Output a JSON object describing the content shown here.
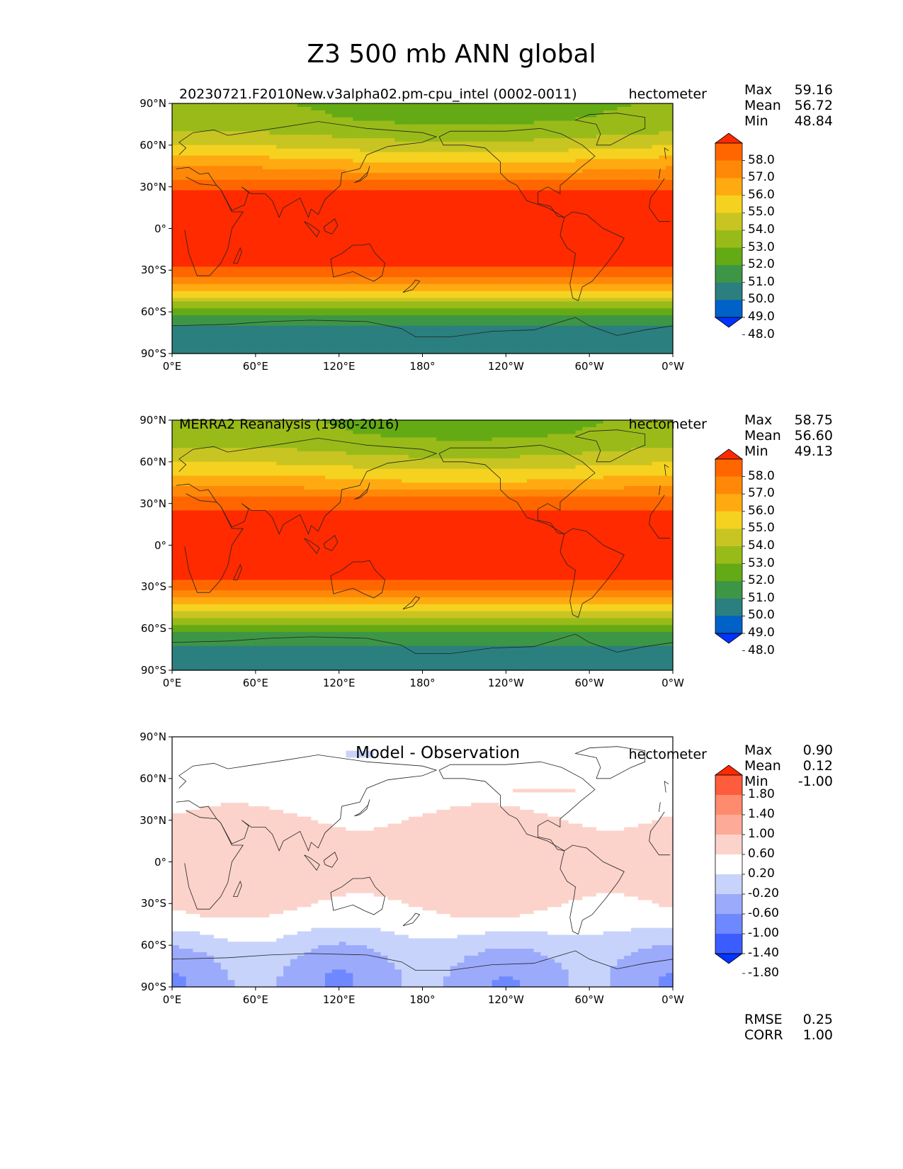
{
  "title": "Z3 500 mb ANN global",
  "colors": {
    "abs_levels": [
      "#0033ff",
      "#0061c8",
      "#2b7f7f",
      "#3d9646",
      "#64aa14",
      "#99bb19",
      "#c8c522",
      "#f5d220",
      "#ffaa10",
      "#ff8808",
      "#ff6600",
      "#ff2a00"
    ],
    "diff_levels": [
      "#0033ff",
      "#3b5dff",
      "#6e88ff",
      "#9caafb",
      "#c8d3fb",
      "#ffffff",
      "#fcd3cb",
      "#fdaa98",
      "#ff8b6e",
      "#fe5c3c",
      "#ff2a00"
    ]
  },
  "chart_data": [
    {
      "type": "heatmap",
      "name": "model",
      "title": "20230721.F2010New.v3alpha02.pm-cpu_intel (0002-0011)",
      "units": "hectometer",
      "stats": {
        "max_label": "Max",
        "max": "59.16",
        "mean_label": "Mean",
        "mean": "56.72",
        "min_label": "Min",
        "min": "48.84"
      },
      "x_ticks": [
        "0°E",
        "60°E",
        "120°E",
        "180°",
        "120°W",
        "60°W",
        "0°W"
      ],
      "y_ticks": [
        "90°N",
        "60°N",
        "30°N",
        "0°",
        "30°S",
        "60°S",
        "90°S"
      ],
      "xlim": [
        0,
        360
      ],
      "ylim": [
        -90,
        90
      ],
      "colorbar": [
        "58.0",
        "57.0",
        "56.0",
        "55.0",
        "54.0",
        "53.0",
        "52.0",
        "51.0",
        "50.0",
        "49.0",
        "48.0"
      ],
      "lat_profile": [
        [
          -90,
          49.3
        ],
        [
          -80,
          49.6
        ],
        [
          -70,
          50.0
        ],
        [
          -60,
          51.5
        ],
        [
          -50,
          53.8
        ],
        [
          -40,
          55.8
        ],
        [
          -30,
          57.8
        ],
        [
          -20,
          58.6
        ],
        [
          0,
          58.8
        ],
        [
          20,
          58.6
        ],
        [
          30,
          57.8
        ],
        [
          40,
          56.2
        ],
        [
          50,
          54.9
        ],
        [
          60,
          53.6
        ],
        [
          70,
          52.6
        ],
        [
          80,
          52.0
        ],
        [
          90,
          51.8
        ]
      ]
    },
    {
      "type": "heatmap",
      "name": "obs",
      "title": "MERRA2 Reanalysis (1980-2016)",
      "units": "hectometer",
      "stats": {
        "max_label": "Max",
        "max": "58.75",
        "mean_label": "Mean",
        "mean": "56.60",
        "min_label": "Min",
        "min": "49.13"
      },
      "x_ticks": [
        "0°E",
        "60°E",
        "120°E",
        "180°",
        "120°W",
        "60°W",
        "0°W"
      ],
      "y_ticks": [
        "90°N",
        "60°N",
        "30°N",
        "0°",
        "30°S",
        "60°S",
        "90°S"
      ],
      "xlim": [
        0,
        360
      ],
      "ylim": [
        -90,
        90
      ],
      "colorbar": [
        "58.0",
        "57.0",
        "56.0",
        "55.0",
        "54.0",
        "53.0",
        "52.0",
        "51.0",
        "50.0",
        "49.0",
        "48.0"
      ],
      "lat_profile": [
        [
          -90,
          49.5
        ],
        [
          -80,
          49.8
        ],
        [
          -70,
          50.1
        ],
        [
          -60,
          51.5
        ],
        [
          -50,
          53.7
        ],
        [
          -40,
          55.6
        ],
        [
          -30,
          57.6
        ],
        [
          -20,
          58.5
        ],
        [
          0,
          58.7
        ],
        [
          20,
          58.5
        ],
        [
          30,
          57.6
        ],
        [
          40,
          56.0
        ],
        [
          50,
          54.8
        ],
        [
          60,
          53.6
        ],
        [
          70,
          52.7
        ],
        [
          80,
          52.1
        ],
        [
          90,
          51.9
        ]
      ]
    },
    {
      "type": "heatmap",
      "name": "diff",
      "title": "Model - Observation",
      "units": "hectometer",
      "stats": {
        "max_label": "Max",
        "max": "0.90",
        "mean_label": "Mean",
        "mean": "0.12",
        "min_label": "Min",
        "min": "-1.00"
      },
      "extra_stats": {
        "rmse_label": "RMSE",
        "rmse": "0.25",
        "corr_label": "CORR",
        "corr": "1.00"
      },
      "x_ticks": [
        "0°E",
        "60°E",
        "120°E",
        "180°",
        "120°W",
        "60°W",
        "0°W"
      ],
      "y_ticks": [
        "90°N",
        "60°N",
        "30°N",
        "0°",
        "30°S",
        "60°S",
        "90°S"
      ],
      "xlim": [
        0,
        360
      ],
      "ylim": [
        -90,
        90
      ],
      "colorbar": [
        "1.80",
        "1.40",
        "1.00",
        "0.60",
        "0.20",
        "-0.20",
        "-0.60",
        "-1.00",
        "-1.40",
        "-1.80"
      ]
    }
  ]
}
